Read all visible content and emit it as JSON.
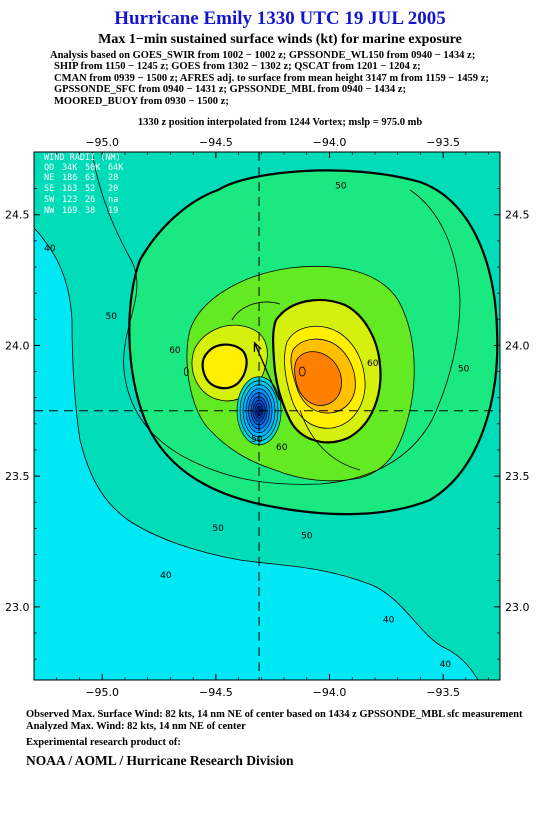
{
  "header": {
    "title": "Hurricane Emily 1330 UTC 19 JUL 2005",
    "subtitle": "Max 1−min sustained surface winds (kt) for marine exposure",
    "analysis_lines": [
      "Analysis based on  GOES_SWIR from 1002 − 1002 z;  GPSSONDE_WL150 from 0940 − 1434 z;",
      "SHIP from 1150 − 1245 z;  GOES from 1302 − 1302 z;  QSCAT from 1201 − 1204 z;",
      "CMAN from 0939 − 1500 z;  AFRES adj. to surface from mean height 3147 m from 1159 − 1459 z;",
      "GPSSONDE_SFC from 0940 − 1431 z;  GPSSONDE_MBL from 0940 − 1434 z;",
      "MOORED_BUOY from 0930 − 1500 z;"
    ],
    "position_note": "1330 z position interpolated from 1244 Vortex; mslp = 975.0 mb"
  },
  "chart_data": {
    "type": "contour",
    "x_ticks": [
      -95.0,
      -94.5,
      -94.0,
      -93.5
    ],
    "x_tick_labels": [
      "−95.0",
      "−94.5",
      "−94.0",
      "−93.5"
    ],
    "y_ticks": [
      23.0,
      23.5,
      24.0,
      24.5
    ],
    "y_tick_labels": [
      "23.0",
      "23.5",
      "24.0",
      "24.5"
    ],
    "xlim": [
      -95.3,
      -93.25
    ],
    "ylim": [
      22.72,
      24.74
    ],
    "storm_center": {
      "lon": -94.31,
      "lat": 23.75
    },
    "max_wind_location": {
      "lon": -94.12,
      "lat": 23.9
    },
    "contour_levels_kt": [
      10,
      20,
      30,
      40,
      50,
      60,
      70,
      80
    ],
    "bold_contours_kt": [
      50,
      64
    ],
    "contour_labels": [
      {
        "text": "50",
        "lon": -93.95,
        "lat": 24.61
      },
      {
        "text": "50",
        "lon": -94.96,
        "lat": 24.11
      },
      {
        "text": "60",
        "lon": -94.68,
        "lat": 23.98
      },
      {
        "text": "60",
        "lon": -93.81,
        "lat": 23.93
      },
      {
        "text": "50",
        "lon": -93.41,
        "lat": 23.91
      },
      {
        "text": "40",
        "lon": -95.23,
        "lat": 24.37
      },
      {
        "text": "50",
        "lon": -94.32,
        "lat": 23.64
      },
      {
        "text": "60",
        "lon": -94.21,
        "lat": 23.61
      },
      {
        "text": "50",
        "lon": -94.49,
        "lat": 23.3
      },
      {
        "text": "50",
        "lon": -94.1,
        "lat": 23.27
      },
      {
        "text": "40",
        "lon": -94.72,
        "lat": 23.12
      },
      {
        "text": "40",
        "lon": -93.74,
        "lat": 22.95
      },
      {
        "text": "40",
        "lon": -93.49,
        "lat": 22.78
      }
    ],
    "wind_radii": {
      "title": "WIND RADII (NM)",
      "header": [
        "QD",
        "34K",
        "50K",
        "64K"
      ],
      "rows": [
        [
          "NE",
          "186",
          "63",
          "28"
        ],
        [
          "SE",
          "163",
          "52",
          "20"
        ],
        [
          "SW",
          "123",
          "26",
          "na"
        ],
        [
          "NW",
          "169",
          "38",
          "19"
        ]
      ]
    },
    "colors": {
      "lt40": "#00e8f4",
      "40": "#00dcb8",
      "50": "#1ae880",
      "60": "#64ea22",
      "70": "#d6f00e",
      "80": "#fff000",
      "90": "#ffc000",
      "100": "#ff7f00",
      "eye": "#0088ff",
      "eye_core": "#0033bb"
    }
  },
  "footer": {
    "observed": "Observed Max. Surface Wind: 82 kts, 14 nm NE of center based on 1434 z GPSSONDE_MBL sfc measurement",
    "analyzed": "Analyzed Max. Wind: 82 kts, 14 nm NE of center",
    "product": "Experimental research product of:",
    "org": "NOAA / AOML / Hurricane Research Division"
  }
}
